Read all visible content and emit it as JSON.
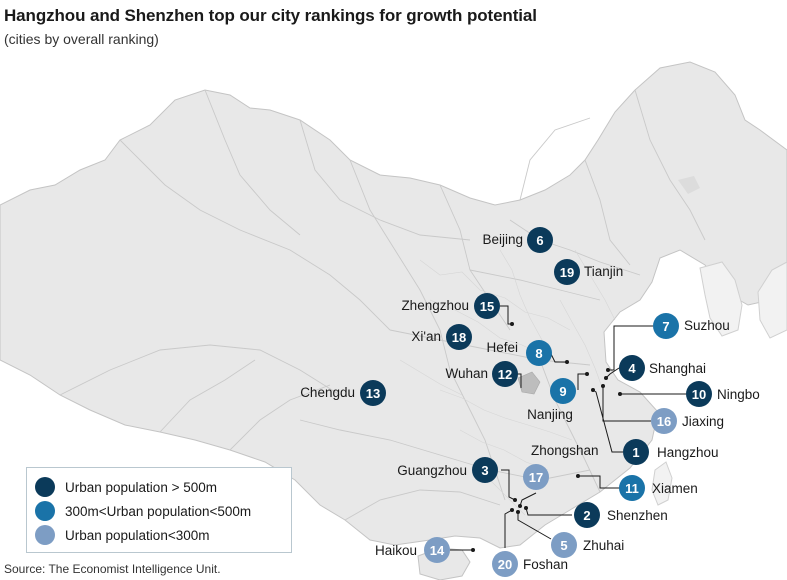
{
  "title": "Hangzhou and Shenzhen top our city rankings for growth potential",
  "subtitle": "(cities by overall ranking)",
  "source": "Source: The Economist Intelligence Unit.",
  "colors": {
    "large": "#0b3a5a",
    "medium": "#1a73a8",
    "small": "#7d9dc4",
    "land": "#e8e8e8",
    "border": "#c8c8c8",
    "highlight": "#bdbdbd"
  },
  "legend": {
    "items": [
      {
        "category": "large",
        "label": "Urban population > 500m"
      },
      {
        "category": "medium",
        "label": "300m<Urban population<500m"
      },
      {
        "category": "small",
        "label": "Urban population<300m"
      }
    ]
  },
  "cities": [
    {
      "name": "Beijing",
      "rank": "6",
      "category": "large"
    },
    {
      "name": "Tianjin",
      "rank": "19",
      "category": "large"
    },
    {
      "name": "Zhengzhou",
      "rank": "15",
      "category": "large"
    },
    {
      "name": "Xi'an",
      "rank": "18",
      "category": "large"
    },
    {
      "name": "Hefei",
      "rank": "8",
      "category": "medium"
    },
    {
      "name": "Wuhan",
      "rank": "12",
      "category": "large"
    },
    {
      "name": "Nanjing",
      "rank": "9",
      "category": "medium"
    },
    {
      "name": "Chengdu",
      "rank": "13",
      "category": "large"
    },
    {
      "name": "Suzhou",
      "rank": "7",
      "category": "medium"
    },
    {
      "name": "Shanghai",
      "rank": "4",
      "category": "large"
    },
    {
      "name": "Ningbo",
      "rank": "10",
      "category": "large"
    },
    {
      "name": "Jiaxing",
      "rank": "16",
      "category": "small"
    },
    {
      "name": "Hangzhou",
      "rank": "1",
      "category": "large"
    },
    {
      "name": "Xiamen",
      "rank": "11",
      "category": "medium"
    },
    {
      "name": "Guangzhou",
      "rank": "3",
      "category": "large"
    },
    {
      "name": "Zhongshan",
      "rank": "17",
      "category": "small"
    },
    {
      "name": "Shenzhen",
      "rank": "2",
      "category": "large"
    },
    {
      "name": "Zhuhai",
      "rank": "5",
      "category": "small"
    },
    {
      "name": "Foshan",
      "rank": "20",
      "category": "small"
    },
    {
      "name": "Haikou",
      "rank": "14",
      "category": "small"
    }
  ]
}
